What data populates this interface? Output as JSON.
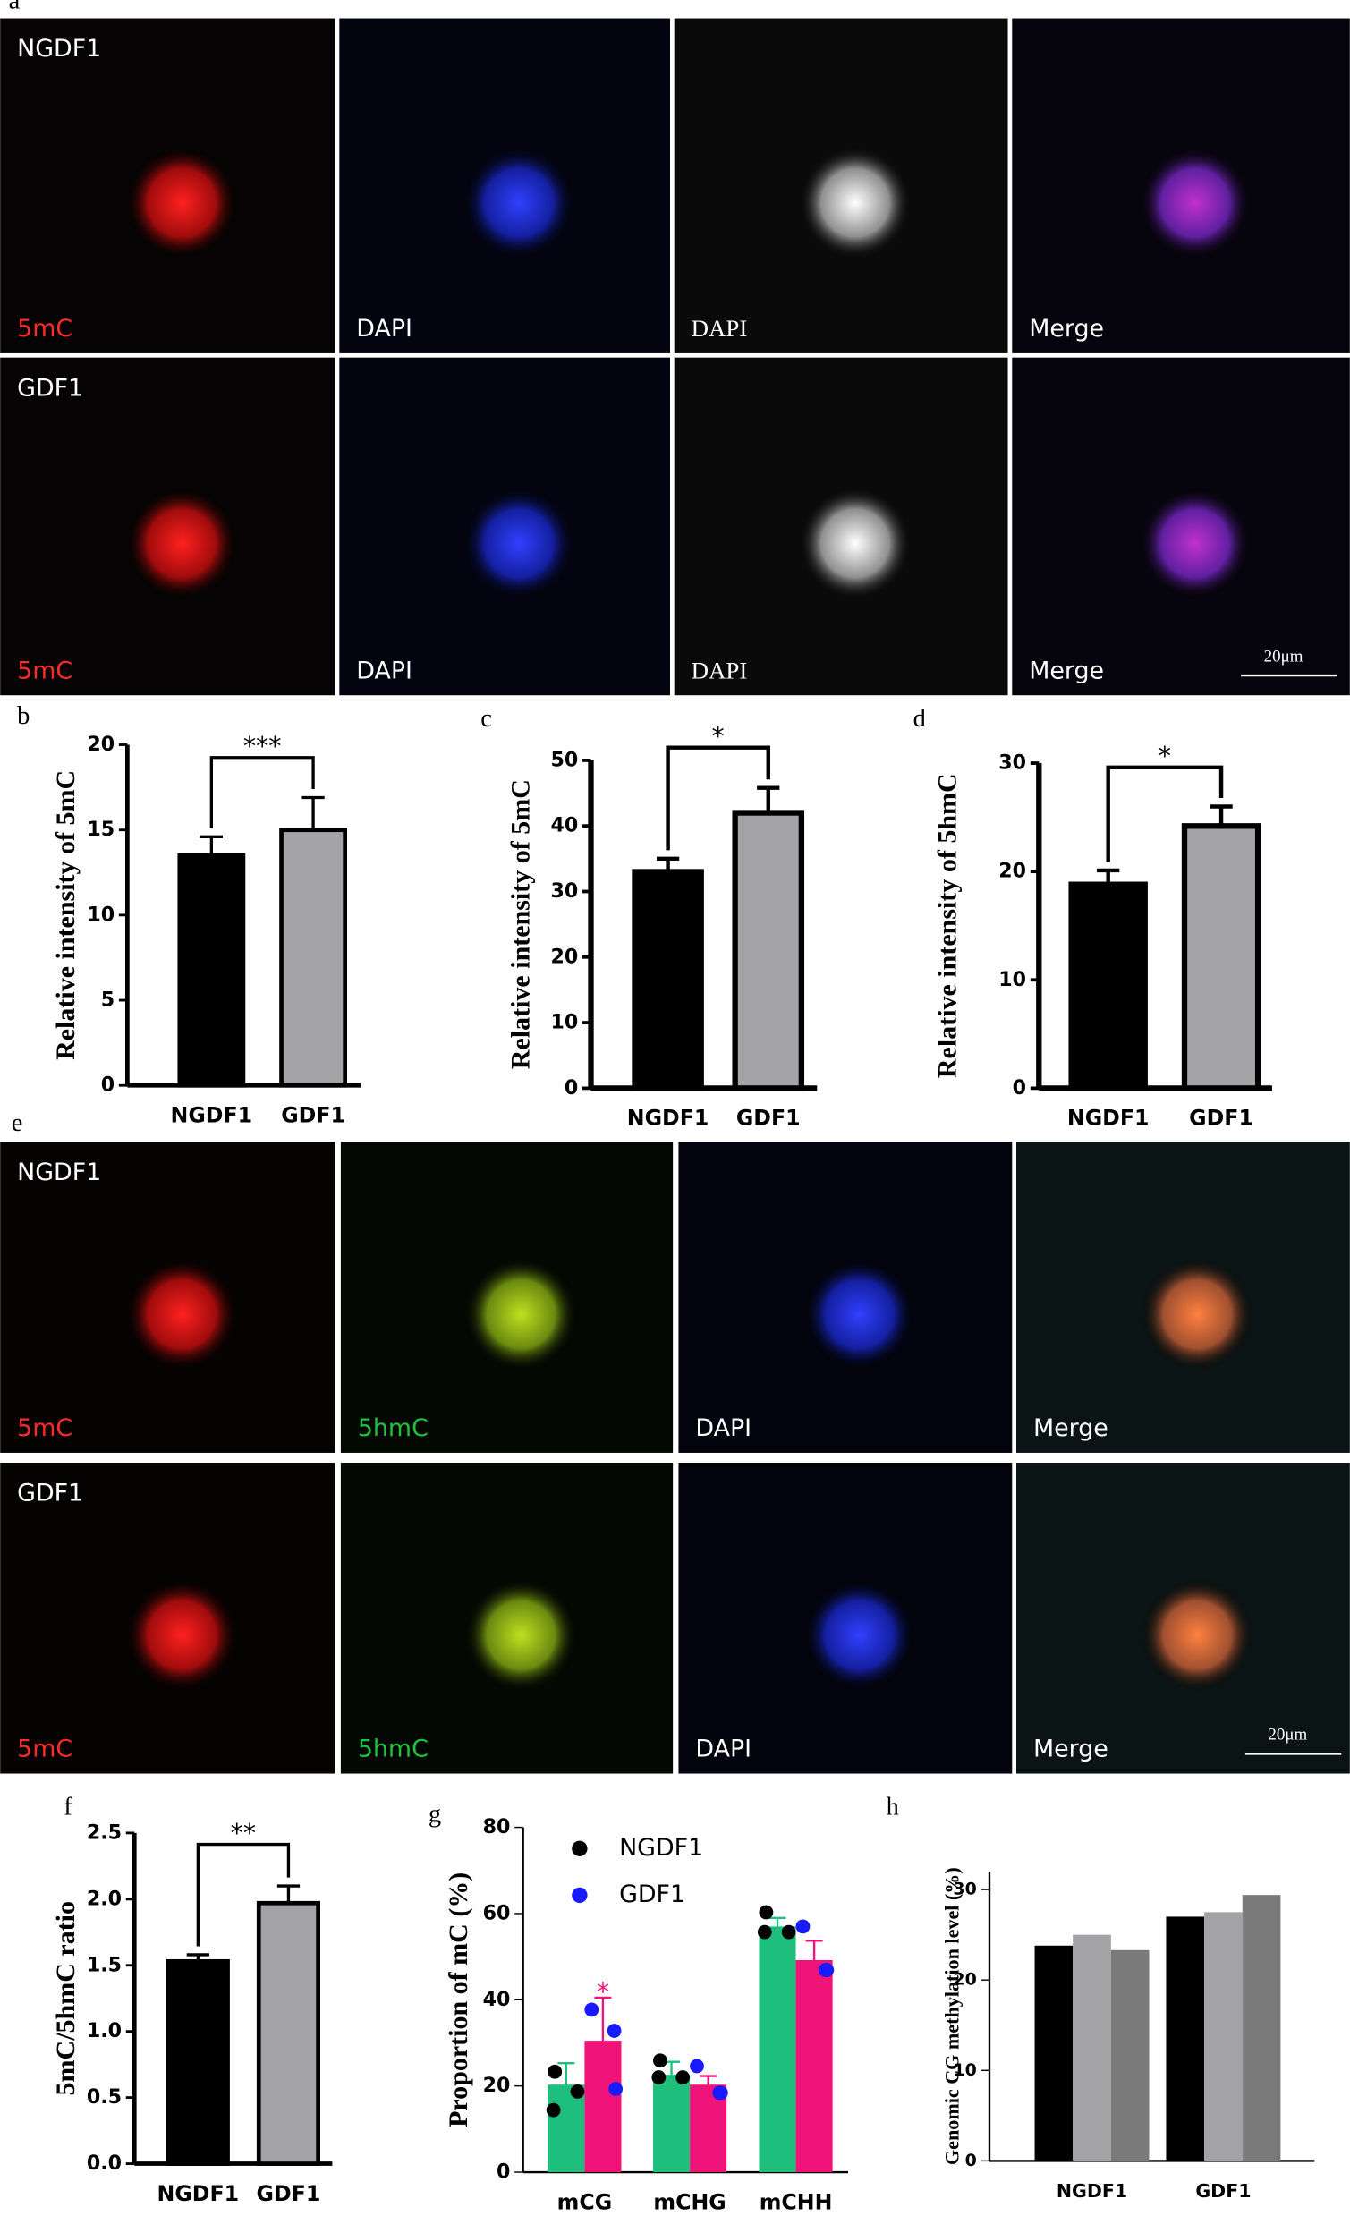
{
  "figure": {
    "panel_labels": [
      "a",
      "b",
      "c",
      "d",
      "e",
      "f",
      "g",
      "h"
    ],
    "micrographs": [
      {
        "rows": [
          {
            "label": "NGDF1",
            "channels": [
              "5mC",
              "DAPI",
              "DAPI",
              "Merge"
            ]
          },
          {
            "label": "GDF1",
            "channels": [
              "5mC",
              "DAPI",
              "DAPI",
              "Merge"
            ]
          }
        ],
        "scale_bar": "20μm"
      },
      {
        "rows": [
          {
            "label": "NGDF1",
            "channels": [
              "5mC",
              "5hmC",
              "DAPI",
              "Merge"
            ]
          },
          {
            "label": "GDF1",
            "channels": [
              "5mC",
              "5hmC",
              "DAPI",
              "Merge"
            ]
          }
        ],
        "scale_bar": "20μm"
      }
    ]
  },
  "chart_data": [
    {
      "type": "bar",
      "y_label": "Relative intensity of 5mC",
      "categories": [
        "NGDF1",
        "GDF1"
      ],
      "values": [
        13.5,
        15.0
      ],
      "errors": [
        1.1,
        1.9
      ],
      "colors": [
        "#000000",
        "#a3a3a6"
      ],
      "ylim": [
        0,
        20
      ],
      "yticks": [
        0,
        5,
        10,
        15,
        20
      ],
      "significance": "***"
    },
    {
      "type": "bar",
      "y_label": "Relative intensity of 5mC",
      "categories": [
        "NGDF1",
        "GDF1"
      ],
      "values": [
        33,
        42
      ],
      "errors": [
        2,
        3.8
      ],
      "colors": [
        "#000000",
        "#a3a3a6"
      ],
      "ylim": [
        0,
        50
      ],
      "yticks": [
        0,
        10,
        20,
        30,
        40,
        50
      ],
      "significance": "*"
    },
    {
      "type": "bar",
      "y_label": "Relative intensity of 5hmC",
      "categories": [
        "NGDF1",
        "GDF1"
      ],
      "values": [
        18.8,
        24.2
      ],
      "errors": [
        1.3,
        1.8
      ],
      "colors": [
        "#000000",
        "#a3a3a6"
      ],
      "ylim": [
        0,
        30
      ],
      "yticks": [
        0,
        10,
        20,
        30
      ],
      "significance": "*"
    },
    {
      "type": "bar",
      "y_label": "5mC/5hmC ratio",
      "categories": [
        "NGDF1",
        "GDF1"
      ],
      "values": [
        1.53,
        1.97
      ],
      "errors": [
        0.05,
        0.13
      ],
      "colors": [
        "#000000",
        "#a3a3a6"
      ],
      "ylim": [
        0,
        2.5
      ],
      "yticks": [
        {
          "value": 0,
          "label": "0.0"
        },
        0.5,
        {
          "value": 1,
          "label": "1.0"
        },
        1.5,
        {
          "value": 2,
          "label": "2.0"
        },
        2.5
      ],
      "significance": "**"
    },
    {
      "type": "grouped_bar",
      "y_label": "Proportion of mC (%)",
      "categories": [
        "mCG",
        "mCHG",
        "mCHH"
      ],
      "ylim": [
        0,
        80
      ],
      "yticks": [
        0,
        20,
        40,
        60,
        80
      ],
      "significance": "*",
      "series": [
        {
          "name": "NGDF1",
          "color": "#1ebf7d",
          "point_color": "#000000",
          "values": [
            20.3,
            22.6,
            57
          ],
          "errors": [
            5,
            3,
            2
          ],
          "points": [
            [
              23.3,
              18.7,
              14.4
            ],
            [
              25.9,
              22,
              22
            ],
            [
              60.3,
              55.7,
              55.7
            ]
          ]
        },
        {
          "name": "GDF1",
          "color": "#f0147a",
          "point_color": "#1a1aff",
          "values": [
            30.5,
            20.3,
            49.2
          ],
          "errors": [
            10,
            2,
            4.5
          ],
          "points": [
            [
              37.7,
              32.8,
              19.3
            ],
            [
              24.6,
              18.4,
              18.4
            ],
            [
              57,
              46.9,
              46.9
            ]
          ]
        }
      ]
    },
    {
      "type": "grouped_bar",
      "y_label": "Genomic CG methylation level (%)",
      "categories": [
        "NGDF1",
        "GDF1"
      ],
      "ylim": [
        0,
        32
      ],
      "yticks": [
        0,
        10,
        20,
        30
      ],
      "series": [
        {
          "color": "#000000",
          "values": [
            23.8,
            27
          ]
        },
        {
          "color": "#a3a3a6",
          "values": [
            25,
            27.5
          ]
        },
        {
          "color": "#7a7a7a",
          "values": [
            23.3,
            29.4
          ]
        }
      ]
    }
  ]
}
